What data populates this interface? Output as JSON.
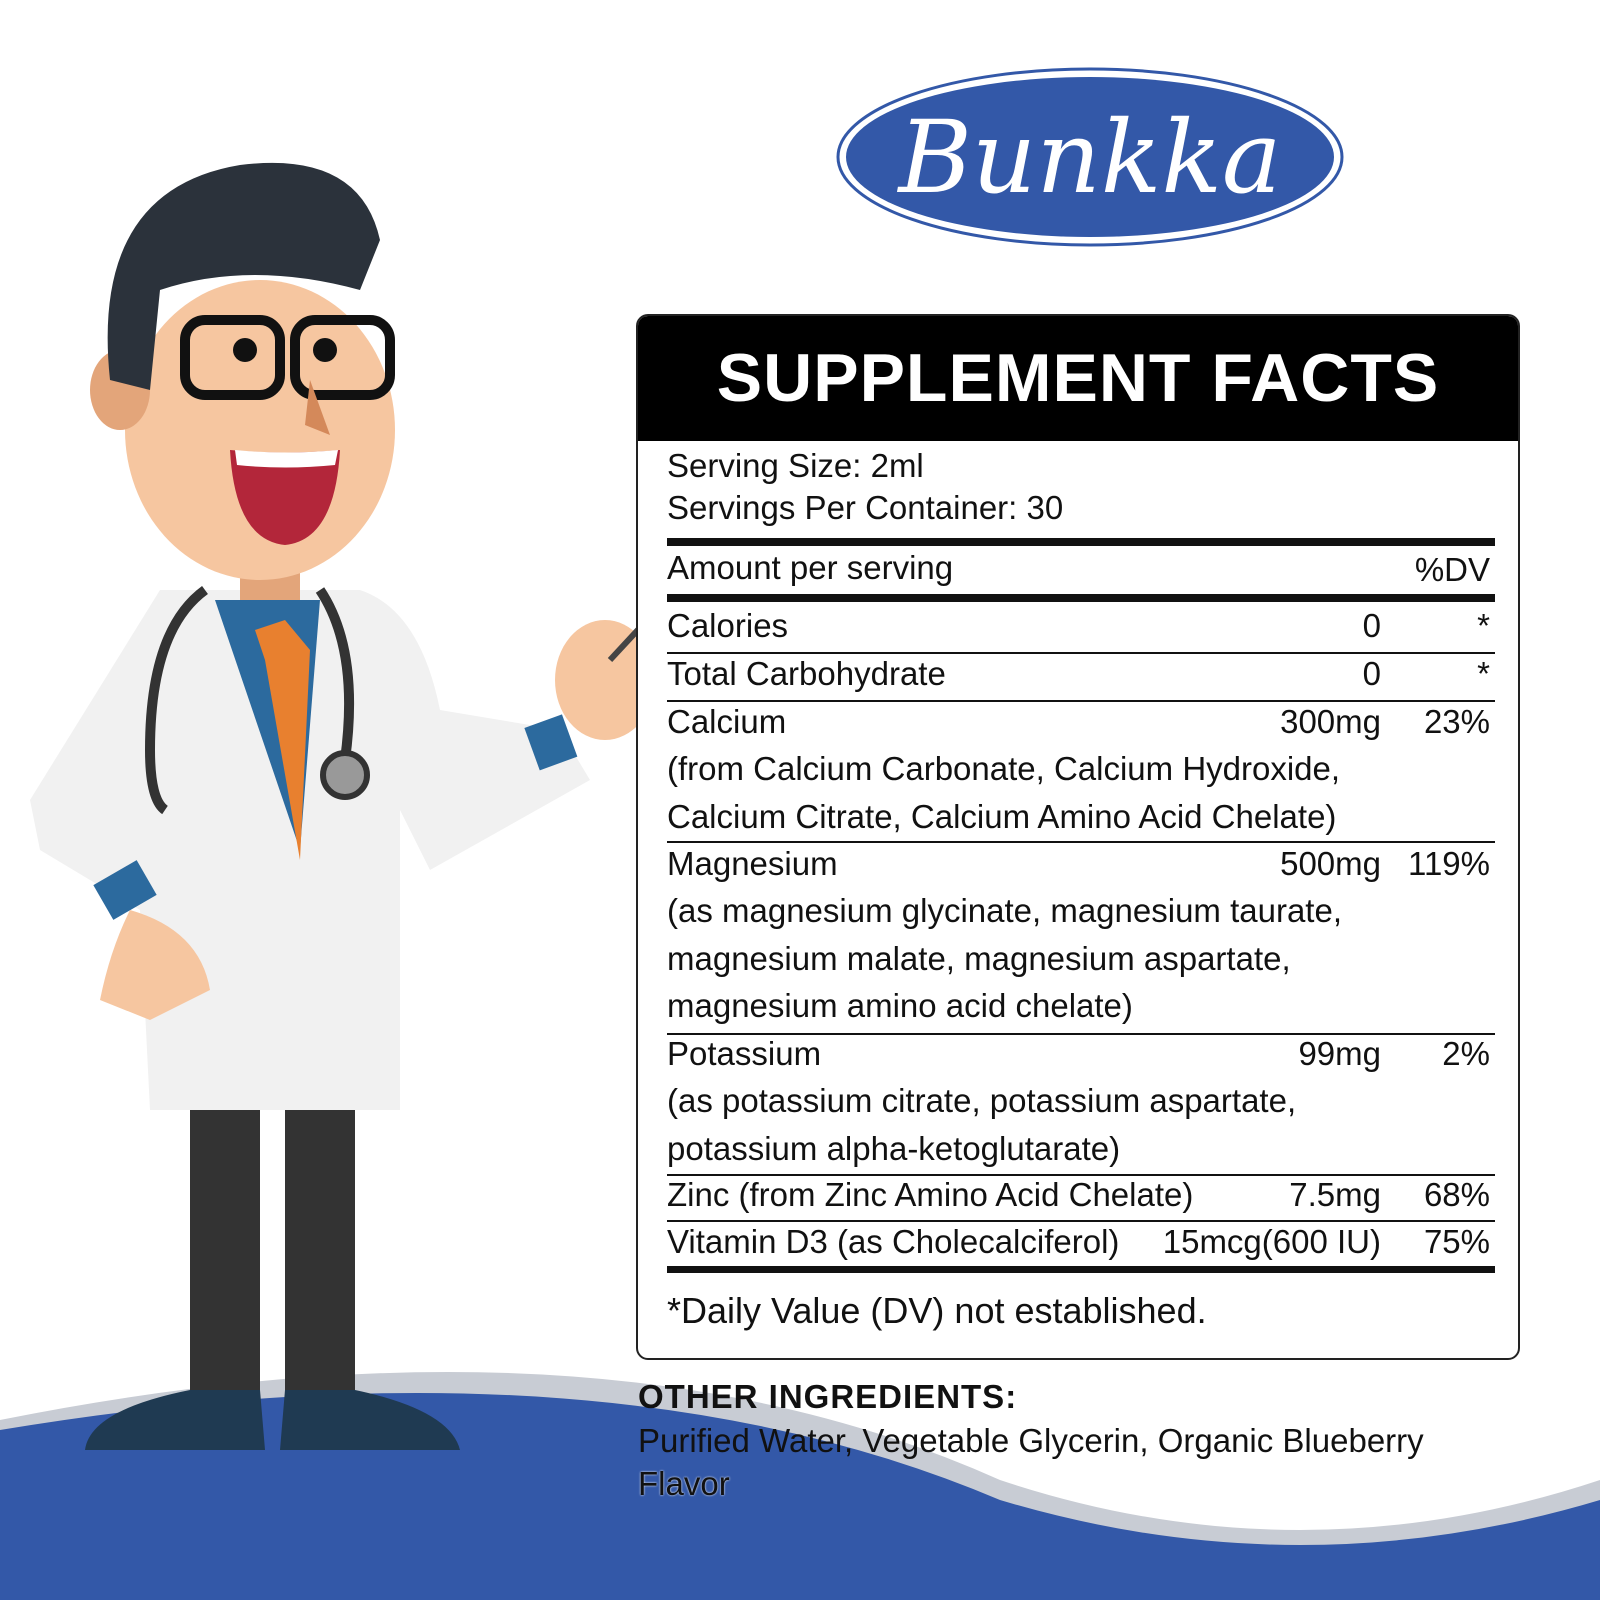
{
  "brand": {
    "logo_text": "Bunkka",
    "color": "#3358a8"
  },
  "facts": {
    "title": "SUPPLEMENT FACTS",
    "serving_size": "Serving Size: 2ml",
    "servings_per_container": "Servings Per Container: 30",
    "amount_header": "Amount per serving",
    "dv_header": "%DV",
    "rows": [
      {
        "name": "Calories",
        "amount": "0",
        "dv": "*"
      },
      {
        "name": "Total Carbohydrate",
        "amount": "0",
        "dv": "*"
      },
      {
        "name": "Calcium",
        "amount": "300mg",
        "dv": "23%",
        "detail": [
          "(from Calcium Carbonate, Calcium Hydroxide,",
          "Calcium Citrate, Calcium Amino Acid Chelate)"
        ]
      },
      {
        "name": "Magnesium",
        "amount": "500mg",
        "dv": "119%",
        "detail": [
          "(as magnesium glycinate, magnesium taurate,",
          "magnesium malate, magnesium aspartate,",
          "magnesium amino acid chelate)"
        ]
      },
      {
        "name": "Potassium",
        "amount": "99mg",
        "dv": "2%",
        "detail": [
          "(as potassium citrate, potassium aspartate,",
          "potassium alpha-ketoglutarate)"
        ]
      },
      {
        "name": "Zinc (from Zinc Amino Acid Chelate)",
        "amount": "7.5mg",
        "dv": "68%"
      },
      {
        "name": "Vitamin D3 (as Cholecalciferol)",
        "amount": "15mcg(600 IU)",
        "dv": "75%"
      }
    ],
    "footnote": "*Daily Value (DV) not established."
  },
  "other_ingredients": {
    "title": "OTHER INGREDIENTS:",
    "lines": [
      "Purified Water, Vegetable Glycerin, Organic Blueberry",
      "Flavor"
    ]
  },
  "colors": {
    "wave": "#3358a8",
    "header": "#000000"
  }
}
